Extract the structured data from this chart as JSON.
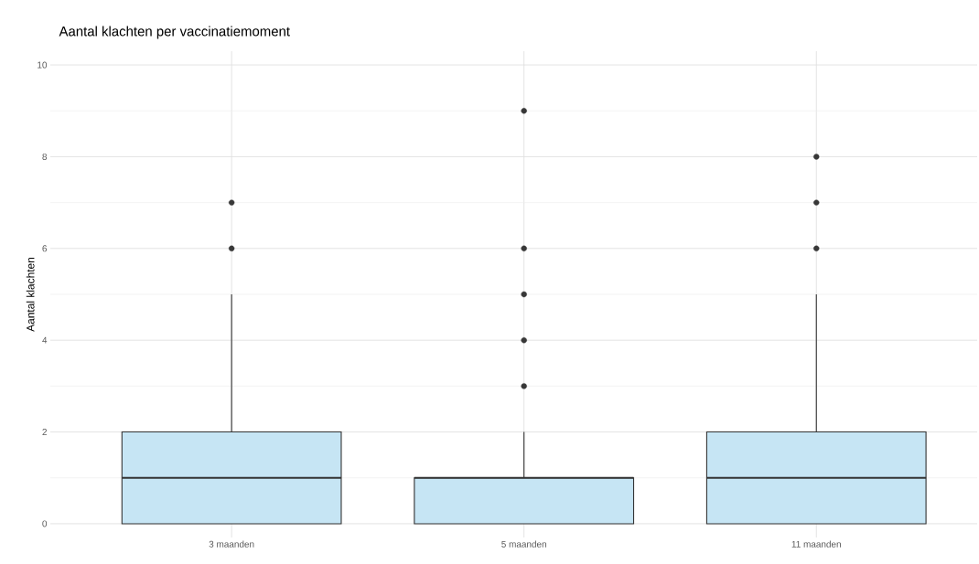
{
  "chart_data": {
    "type": "box",
    "title": "Aantal klachten per vaccinatiemoment",
    "ylabel": "Aantal klachten",
    "categories": [
      "3 maanden",
      "5 maanden",
      "11 maanden"
    ],
    "boxes": [
      {
        "low": 0,
        "q1": 0,
        "median": 1,
        "q3": 2,
        "high": 5,
        "outliers": [
          6,
          7
        ]
      },
      {
        "low": 0,
        "q1": 0,
        "median": 1,
        "q3": 1,
        "high": 2,
        "outliers": [
          3,
          4,
          5,
          6,
          9
        ]
      },
      {
        "low": 0,
        "q1": 0,
        "median": 1,
        "q3": 2,
        "high": 5,
        "outliers": [
          6,
          7,
          8
        ]
      }
    ],
    "color": "#c6e5f4",
    "marker": "circle",
    "grid": true,
    "ylim": [
      -0.3,
      10.3
    ],
    "yticks": [
      0,
      2,
      4,
      6,
      8,
      10
    ]
  }
}
